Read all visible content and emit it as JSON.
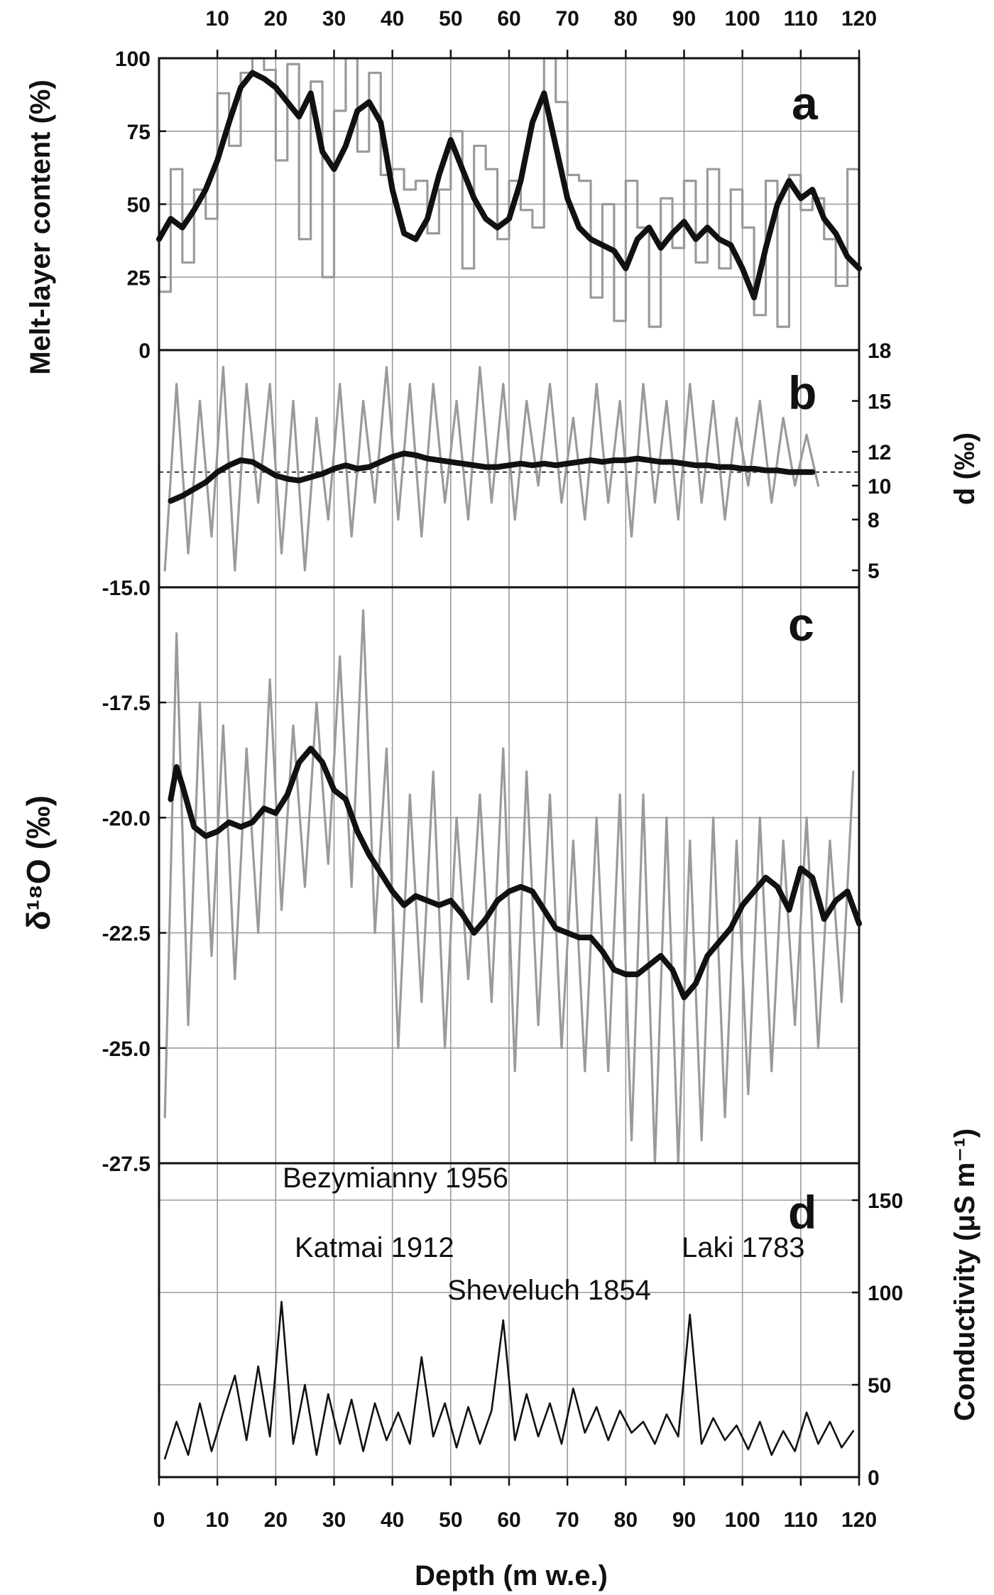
{
  "chart_data": {
    "type": "line",
    "shared_x": {
      "label": "Depth (m w.e.)",
      "range": [
        0,
        120
      ],
      "bottom_ticks": [
        0,
        10,
        20,
        30,
        40,
        50,
        60,
        70,
        80,
        90,
        100,
        110,
        120
      ],
      "top_ticks": [
        10,
        20,
        30,
        40,
        50,
        60,
        70,
        80,
        90,
        100,
        110,
        120
      ]
    },
    "panels": [
      {
        "id": "a",
        "ylabel": "Melt-layer content (%)",
        "ylim": [
          0,
          100
        ],
        "yticks": [
          "0",
          "25",
          "50",
          "75",
          "100"
        ],
        "gridlines": [
          25,
          50,
          75
        ],
        "series": [
          {
            "style": "gray step histogram (raw)",
            "x": [
              0,
              2,
              4,
              6,
              8,
              10,
              12,
              14,
              16,
              18,
              20,
              22,
              24,
              26,
              28,
              30,
              32,
              34,
              36,
              38,
              40,
              42,
              44,
              46,
              48,
              50,
              52,
              54,
              56,
              58,
              60,
              62,
              64,
              66,
              68,
              70,
              72,
              74,
              76,
              78,
              80,
              82,
              84,
              86,
              88,
              90,
              92,
              94,
              96,
              98,
              100,
              102,
              104,
              106,
              108,
              110,
              112,
              114,
              116,
              118,
              120
            ],
            "y": [
              20,
              62,
              30,
              55,
              45,
              88,
              70,
              95,
              100,
              96,
              65,
              98,
              38,
              92,
              25,
              82,
              100,
              68,
              95,
              60,
              62,
              55,
              58,
              40,
              55,
              75,
              28,
              70,
              62,
              38,
              58,
              48,
              42,
              100,
              85,
              60,
              58,
              18,
              50,
              10,
              58,
              42,
              8,
              52,
              35,
              58,
              30,
              62,
              28,
              55,
              42,
              12,
              58,
              8,
              60,
              48,
              52,
              38,
              22,
              62,
              25
            ]
          },
          {
            "style": "black smoothed",
            "x": [
              0,
              2,
              4,
              6,
              8,
              10,
              12,
              14,
              16,
              18,
              20,
              22,
              24,
              26,
              28,
              30,
              32,
              34,
              36,
              38,
              40,
              42,
              44,
              46,
              48,
              50,
              52,
              54,
              56,
              58,
              60,
              62,
              64,
              66,
              68,
              70,
              72,
              74,
              76,
              78,
              80,
              82,
              84,
              86,
              88,
              90,
              92,
              94,
              96,
              98,
              100,
              102,
              104,
              106,
              108,
              110,
              112,
              114,
              116,
              118,
              120
            ],
            "y": [
              38,
              45,
              42,
              48,
              55,
              65,
              78,
              90,
              95,
              93,
              90,
              85,
              80,
              88,
              68,
              62,
              70,
              82,
              85,
              78,
              55,
              40,
              38,
              45,
              60,
              72,
              62,
              52,
              45,
              42,
              45,
              58,
              78,
              88,
              70,
              52,
              42,
              38,
              36,
              34,
              28,
              38,
              42,
              35,
              40,
              44,
              38,
              42,
              38,
              36,
              28,
              18,
              35,
              50,
              58,
              52,
              55,
              45,
              40,
              32,
              28
            ]
          }
        ]
      },
      {
        "id": "b",
        "ylabel": "d (‰)",
        "y_side": "right",
        "ylim": [
          4,
          18
        ],
        "yticks": [
          "5",
          "8",
          "10",
          "12",
          "15",
          "18"
        ],
        "reference_line": 10.8,
        "series": [
          {
            "style": "gray noisy raw",
            "x": [
              1,
              3,
              5,
              7,
              9,
              11,
              13,
              15,
              17,
              19,
              21,
              23,
              25,
              27,
              29,
              31,
              33,
              35,
              37,
              39,
              41,
              43,
              45,
              47,
              49,
              51,
              53,
              55,
              57,
              59,
              61,
              63,
              65,
              67,
              69,
              71,
              73,
              75,
              77,
              79,
              81,
              83,
              85,
              87,
              89,
              91,
              93,
              95,
              97,
              99,
              101,
              103,
              105,
              107,
              109,
              111,
              113
            ],
            "y": [
              5,
              16,
              6,
              15,
              7,
              17,
              5,
              16,
              9,
              16,
              6,
              15,
              5,
              14,
              8,
              16,
              7,
              15,
              9,
              17,
              8,
              16,
              7,
              16,
              9,
              15,
              8,
              17,
              9,
              16,
              8,
              15,
              10,
              16,
              9,
              14,
              8,
              16,
              9,
              15,
              7,
              16,
              9,
              15,
              8,
              16,
              9,
              15,
              8,
              14,
              10,
              15,
              9,
              14,
              10,
              13,
              10
            ]
          },
          {
            "style": "black smoothed",
            "x": [
              2,
              4,
              6,
              8,
              10,
              12,
              14,
              16,
              18,
              20,
              22,
              24,
              26,
              28,
              30,
              32,
              34,
              36,
              38,
              40,
              42,
              44,
              46,
              48,
              50,
              52,
              54,
              56,
              58,
              60,
              62,
              64,
              66,
              68,
              70,
              72,
              74,
              76,
              78,
              80,
              82,
              84,
              86,
              88,
              90,
              92,
              94,
              96,
              98,
              100,
              102,
              104,
              106,
              108,
              110,
              112
            ],
            "y": [
              9.1,
              9.4,
              9.8,
              10.2,
              10.8,
              11.2,
              11.5,
              11.4,
              11.0,
              10.6,
              10.4,
              10.3,
              10.5,
              10.7,
              11.0,
              11.2,
              11.0,
              11.1,
              11.4,
              11.7,
              11.9,
              11.8,
              11.6,
              11.5,
              11.4,
              11.3,
              11.2,
              11.1,
              11.1,
              11.2,
              11.3,
              11.2,
              11.3,
              11.2,
              11.3,
              11.4,
              11.5,
              11.4,
              11.5,
              11.5,
              11.6,
              11.5,
              11.4,
              11.4,
              11.3,
              11.2,
              11.2,
              11.1,
              11.1,
              11.0,
              11.0,
              10.9,
              10.9,
              10.8,
              10.8,
              10.8
            ]
          }
        ]
      },
      {
        "id": "c",
        "ylabel": "δ¹⁸O (‰)",
        "ylim": [
          -27.5,
          -15.0
        ],
        "yticks": [
          "-15.0",
          "-17.5",
          "-20.0",
          "-22.5",
          "-25.0",
          "-27.5"
        ],
        "gridlines": [
          -17.5,
          -20.0,
          -22.5,
          -25.0
        ],
        "series": [
          {
            "style": "gray noisy raw",
            "x": [
              1,
              3,
              5,
              7,
              9,
              11,
              13,
              15,
              17,
              19,
              21,
              23,
              25,
              27,
              29,
              31,
              33,
              35,
              37,
              39,
              41,
              43,
              45,
              47,
              49,
              51,
              53,
              55,
              57,
              59,
              61,
              63,
              65,
              67,
              69,
              71,
              73,
              75,
              77,
              79,
              81,
              83,
              85,
              87,
              89,
              91,
              93,
              95,
              97,
              99,
              101,
              103,
              105,
              107,
              109,
              111,
              113,
              115,
              117,
              119
            ],
            "y": [
              -26.5,
              -16.0,
              -24.5,
              -17.5,
              -23.0,
              -18.0,
              -23.5,
              -18.5,
              -22.5,
              -17.0,
              -22.0,
              -18.0,
              -21.5,
              -17.5,
              -21.0,
              -16.5,
              -21.5,
              -15.5,
              -22.5,
              -18.5,
              -25.0,
              -19.5,
              -24.0,
              -19.0,
              -25.0,
              -20.0,
              -23.5,
              -19.5,
              -24.0,
              -18.5,
              -25.5,
              -19.0,
              -24.5,
              -19.5,
              -25.0,
              -20.5,
              -25.5,
              -20.0,
              -25.5,
              -19.5,
              -27.0,
              -19.5,
              -27.5,
              -20.0,
              -27.5,
              -20.5,
              -27.0,
              -20.0,
              -26.5,
              -20.5,
              -26.0,
              -20.0,
              -25.5,
              -20.5,
              -24.5,
              -20.0,
              -25.0,
              -20.5,
              -24.0,
              -19.0
            ]
          },
          {
            "style": "black smoothed",
            "x": [
              2,
              3,
              4,
              6,
              8,
              10,
              12,
              14,
              16,
              18,
              20,
              22,
              24,
              26,
              28,
              30,
              32,
              34,
              36,
              38,
              40,
              42,
              44,
              46,
              48,
              50,
              52,
              54,
              56,
              58,
              60,
              62,
              64,
              66,
              68,
              70,
              72,
              74,
              76,
              78,
              80,
              82,
              84,
              86,
              88,
              90,
              92,
              94,
              96,
              98,
              100,
              102,
              104,
              106,
              108,
              110,
              112,
              114,
              116,
              118,
              120
            ],
            "y": [
              -19.6,
              -18.9,
              -19.3,
              -20.2,
              -20.4,
              -20.3,
              -20.1,
              -20.2,
              -20.1,
              -19.8,
              -19.9,
              -19.5,
              -18.8,
              -18.5,
              -18.8,
              -19.4,
              -19.6,
              -20.3,
              -20.8,
              -21.2,
              -21.6,
              -21.9,
              -21.7,
              -21.8,
              -21.9,
              -21.8,
              -22.1,
              -22.5,
              -22.2,
              -21.8,
              -21.6,
              -21.5,
              -21.6,
              -22.0,
              -22.4,
              -22.5,
              -22.6,
              -22.6,
              -22.9,
              -23.3,
              -23.4,
              -23.4,
              -23.2,
              -23.0,
              -23.3,
              -23.9,
              -23.6,
              -23.0,
              -22.7,
              -22.4,
              -21.9,
              -21.6,
              -21.3,
              -21.5,
              -22.0,
              -21.1,
              -21.3,
              -22.2,
              -21.8,
              -21.6,
              -22.3
            ]
          }
        ]
      },
      {
        "id": "d",
        "ylabel": "Conductivity (μS m⁻¹)",
        "y_side": "right",
        "ylim": [
          0,
          170
        ],
        "yticks": [
          "0",
          "50",
          "100",
          "150"
        ],
        "gridlines": [
          50,
          100,
          150
        ],
        "series": [
          {
            "style": "black noisy spikes",
            "x": [
              1,
              3,
              5,
              7,
              9,
              11,
              13,
              15,
              17,
              19,
              21,
              23,
              25,
              27,
              29,
              31,
              33,
              35,
              37,
              39,
              41,
              43,
              45,
              47,
              49,
              51,
              53,
              55,
              57,
              59,
              61,
              63,
              65,
              67,
              69,
              71,
              73,
              75,
              77,
              79,
              81,
              83,
              85,
              87,
              89,
              91,
              93,
              95,
              97,
              99,
              101,
              103,
              105,
              107,
              109,
              111,
              113,
              115,
              117,
              119
            ],
            "y": [
              10,
              30,
              12,
              40,
              14,
              35,
              55,
              20,
              60,
              22,
              95,
              18,
              50,
              12,
              45,
              18,
              42,
              14,
              40,
              20,
              35,
              18,
              65,
              22,
              40,
              16,
              38,
              18,
              36,
              85,
              20,
              45,
              22,
              40,
              18,
              48,
              24,
              38,
              20,
              36,
              24,
              30,
              18,
              34,
              22,
              88,
              18,
              32,
              20,
              28,
              15,
              30,
              12,
              25,
              14,
              35,
              18,
              30,
              16,
              25
            ]
          }
        ],
        "annotations": [
          {
            "text": "Bezymianny 1956",
            "x": 19.8,
            "y": 170
          },
          {
            "text": "Katmai 1912",
            "x": 36.5,
            "y": 104
          },
          {
            "text": "Sheveluch 1854",
            "x": 59.5,
            "y": 87
          },
          {
            "text": "Laki 1783",
            "x": 91.5,
            "y": 89
          }
        ]
      }
    ]
  }
}
